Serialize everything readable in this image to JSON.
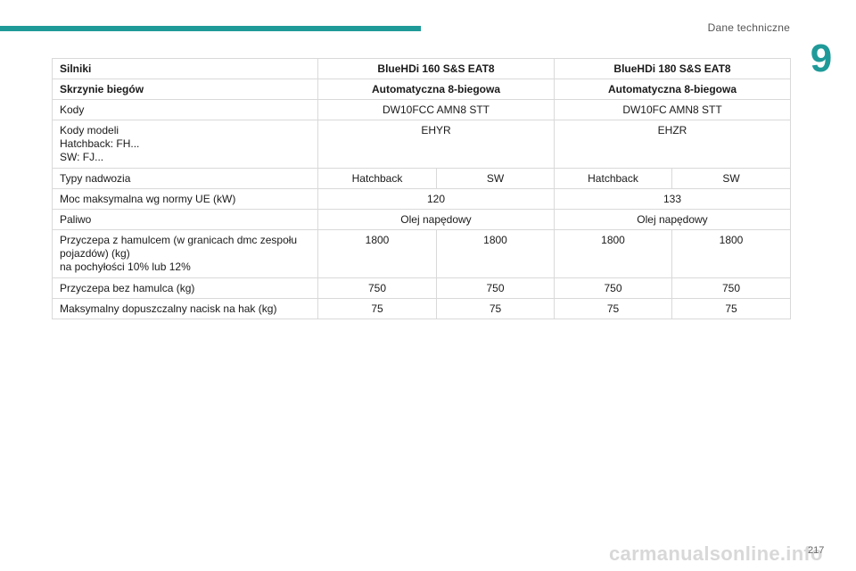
{
  "header": {
    "section_title": "Dane techniczne",
    "chapter_number": "9",
    "accent_color": "#1f9a99"
  },
  "table": {
    "header_row": {
      "label": "Silniki",
      "col1": "BlueHDi 160 S&S EAT8",
      "col2": "BlueHDi 180 S&S EAT8"
    },
    "gearbox_row": {
      "label": "Skrzynie biegów",
      "col1": "Automatyczna 8-biegowa",
      "col2": "Automatyczna 8-biegowa"
    },
    "codes_row": {
      "label": "Kody",
      "col1": "DW10FCC AMN8 STT",
      "col2": "DW10FC AMN8 STT"
    },
    "model_codes_row": {
      "label_line1": "Kody modeli",
      "label_line2": "Hatchback: FH...",
      "label_line3": "SW: FJ...",
      "col1": "EHYR",
      "col2": "EHZR"
    },
    "body_type_row": {
      "label": "Typy nadwozia",
      "values": [
        "Hatchback",
        "SW",
        "Hatchback",
        "SW"
      ]
    },
    "power_row": {
      "label": "Moc maksymalna wg normy UE (kW)",
      "col1": "120",
      "col2": "133"
    },
    "fuel_row": {
      "label": "Paliwo",
      "col1": "Olej napędowy",
      "col2": "Olej napędowy"
    },
    "braked_trailer_row": {
      "label_line1": "Przyczepa z hamulcem (w granicach dmc zespołu",
      "label_line2": "pojazdów) (kg)",
      "label_line3": "na pochyłości 10% lub 12%",
      "values": [
        "1800",
        "1800",
        "1800",
        "1800"
      ]
    },
    "unbraked_trailer_row": {
      "label": "Przyczepa bez hamulca (kg)",
      "values": [
        "750",
        "750",
        "750",
        "750"
      ]
    },
    "hitch_load_row": {
      "label": "Maksymalny dopuszczalny nacisk na hak (kg)",
      "values": [
        "75",
        "75",
        "75",
        "75"
      ]
    }
  },
  "footer": {
    "page_number": "217",
    "watermark": "carmanualsonline.info"
  }
}
